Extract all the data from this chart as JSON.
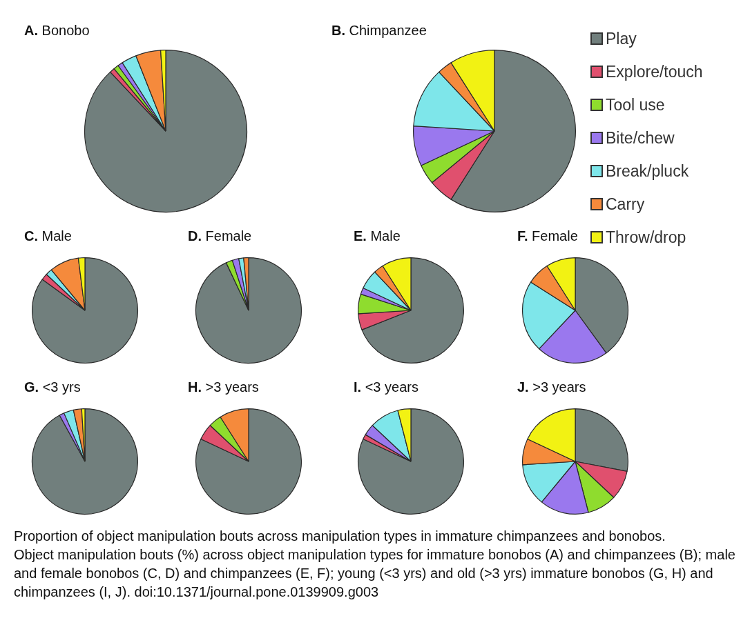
{
  "chart_data": [
    {
      "type": "pie",
      "title": "A. Bonobo",
      "categories": [
        null,
        null,
        null,
        null,
        null,
        null,
        null
      ],
      "values": [
        88,
        1,
        1,
        1,
        3,
        5,
        1
      ],
      "colors": [
        "#717f7d",
        "#e0506e",
        "#8fdc2e",
        "#9a78ee",
        "#7ee6ea",
        "#f58a3c",
        "#f2f213"
      ],
      "legend": false
    },
    {
      "type": "pie",
      "title": "B. Chimpanzee",
      "categories": [
        "Play",
        "Explore/touch",
        "Tool use",
        "Bite/chew",
        "Break/pluck",
        "Carry",
        "Throw/drop"
      ],
      "values": [
        59,
        5,
        4,
        8,
        12,
        3,
        9
      ],
      "colors": [
        "#717f7d",
        "#e0506e",
        "#8fdc2e",
        "#9a78ee",
        "#7ee6ea",
        "#f58a3c",
        "#f2f213"
      ],
      "legend": "right"
    },
    {
      "type": "pie",
      "title": "C. Male",
      "categories": [
        null,
        null,
        null,
        null,
        null,
        null,
        null
      ],
      "values": [
        85,
        2,
        0,
        0,
        2,
        9,
        2
      ],
      "colors": [
        "#717f7d",
        "#e0506e",
        "#8fdc2e",
        "#9a78ee",
        "#7ee6ea",
        "#f58a3c",
        "#f2f213"
      ],
      "legend": false
    },
    {
      "type": "pie",
      "title": "D. Female",
      "categories": [
        null,
        null,
        null,
        null,
        null,
        null,
        null
      ],
      "values": [
        93,
        0,
        2,
        2,
        1.5,
        1.5,
        0
      ],
      "colors": [
        "#717f7d",
        "#e0506e",
        "#8fdc2e",
        "#9a78ee",
        "#7ee6ea",
        "#f58a3c",
        "#f2f213"
      ],
      "legend": false
    },
    {
      "type": "pie",
      "title": "E. Male",
      "categories": [
        null,
        null,
        null,
        null,
        null,
        null,
        null
      ],
      "values": [
        69,
        5,
        6,
        2,
        6,
        3,
        9
      ],
      "colors": [
        "#717f7d",
        "#e0506e",
        "#8fdc2e",
        "#9a78ee",
        "#7ee6ea",
        "#f58a3c",
        "#f2f213"
      ],
      "legend": false
    },
    {
      "type": "pie",
      "title": "F. Female",
      "categories": [
        null,
        null,
        null,
        null,
        null,
        null,
        null
      ],
      "values": [
        40,
        0,
        0,
        22,
        22,
        7,
        9
      ],
      "colors": [
        "#717f7d",
        "#e0506e",
        "#8fdc2e",
        "#9a78ee",
        "#7ee6ea",
        "#f58a3c",
        "#f2f213"
      ],
      "legend": false
    },
    {
      "type": "pie",
      "title": "G. <3 yrs",
      "categories": [
        null,
        null,
        null,
        null,
        null,
        null,
        null
      ],
      "values": [
        92,
        0,
        0,
        1.5,
        3,
        2.5,
        1
      ],
      "colors": [
        "#717f7d",
        "#e0506e",
        "#8fdc2e",
        "#9a78ee",
        "#7ee6ea",
        "#f58a3c",
        "#f2f213"
      ],
      "legend": false
    },
    {
      "type": "pie",
      "title": "H. >3 years",
      "categories": [
        null,
        null,
        null,
        null,
        null,
        null,
        null
      ],
      "values": [
        82,
        5,
        4,
        0,
        0,
        9,
        0
      ],
      "colors": [
        "#717f7d",
        "#e0506e",
        "#8fdc2e",
        "#9a78ee",
        "#7ee6ea",
        "#f58a3c",
        "#f2f213"
      ],
      "legend": false
    },
    {
      "type": "pie",
      "title": "I. <3 years",
      "categories": [
        null,
        null,
        null,
        null,
        null,
        null,
        null
      ],
      "values": [
        82,
        1.5,
        0,
        3.5,
        9,
        0,
        4
      ],
      "colors": [
        "#717f7d",
        "#e0506e",
        "#8fdc2e",
        "#9a78ee",
        "#7ee6ea",
        "#f58a3c",
        "#f2f213"
      ],
      "legend": false
    },
    {
      "type": "pie",
      "title": "J. >3 years",
      "categories": [
        null,
        null,
        null,
        null,
        null,
        null,
        null
      ],
      "values": [
        28,
        9,
        9,
        15,
        13,
        8,
        18
      ],
      "colors": [
        "#717f7d",
        "#e0506e",
        "#8fdc2e",
        "#9a78ee",
        "#7ee6ea",
        "#f58a3c",
        "#f2f213"
      ],
      "legend": false,
      "annotations": [
        "Proportion of object manipulation bouts across manipulation types in immature chimpanzees and bonobos.",
        "Object manipulation bouts (%) across object manipulation types for immature bonobos (A) and chimpanzees (B); male and female bonobos (C, D) and chimpanzees (E, F); young (<3 yrs) and old (>3 yrs) immature bonobos (G, H) and chimpanzees (I, J). doi:10.1371/journal.pone.0139909.g003"
      ]
    }
  ]
}
